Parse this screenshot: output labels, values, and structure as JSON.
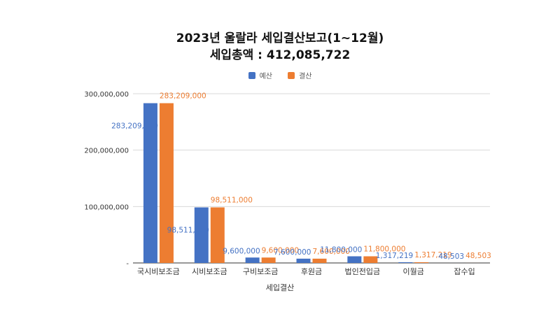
{
  "title_line1": "2023년 울랄라 세입결산보고(1~12월)",
  "title_line2": "세입총액 : 412,085,722",
  "colors": {
    "budget": "#4472c4",
    "settlement": "#ed7d31",
    "grid": "#d9d9d9",
    "axis": "#333333"
  },
  "chart_data": {
    "type": "bar",
    "title": "2023년 울랄라 세입결산보고(1~12월)",
    "subtitle": "세입총액 : 412,085,722",
    "xlabel": "세입결산",
    "ylabel": "",
    "ylim": [
      0,
      300000000
    ],
    "y_ticks": [
      0,
      100000000,
      200000000,
      300000000
    ],
    "y_tick_labels": [
      "-",
      "100,000,000",
      "200,000,000",
      "300,000,000"
    ],
    "grid": true,
    "legend_position": "top",
    "categories": [
      "국시비보조금",
      "시비보조금",
      "구비보조금",
      "후원금",
      "법인전입금",
      "이월금",
      "잡수입"
    ],
    "series": [
      {
        "name": "예산",
        "values": [
          283209000,
          98511000,
          9600000,
          7600000,
          11800000,
          1317219,
          48503
        ],
        "labels": [
          "283,209,000",
          "98,511,000",
          "9,600,000",
          "7,600,000",
          "11,800,000",
          "1,317,219",
          "48,503"
        ]
      },
      {
        "name": "결산",
        "values": [
          283209000,
          98511000,
          9600000,
          7600000,
          11800000,
          1317219,
          48503
        ],
        "labels": [
          "283,209,000",
          "98,511,000",
          "9,600,000",
          "7,600,000",
          "11,800,000",
          "1,317,219",
          "48,503"
        ]
      }
    ]
  }
}
